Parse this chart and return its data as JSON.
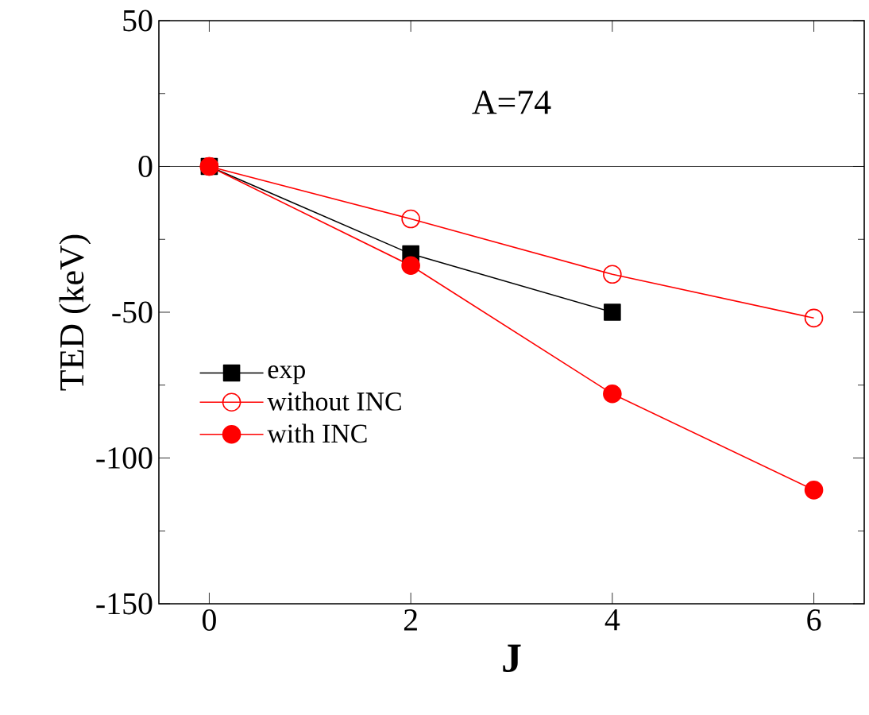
{
  "chart_data": {
    "type": "line",
    "xlabel": "J",
    "ylabel": "TED (keV)",
    "x": [
      0,
      2,
      4,
      6
    ],
    "series": [
      {
        "name": "exp",
        "color": "#000000",
        "marker": "square",
        "values": [
          0,
          -30,
          -50,
          null
        ]
      },
      {
        "name": "without INC",
        "color": "#ff0000",
        "marker": "open circle",
        "values": [
          0,
          -18,
          -37,
          -52
        ]
      },
      {
        "name": "with INC",
        "color": "#ff0000",
        "marker": "circle",
        "values": [
          0,
          -34,
          -78,
          -111
        ]
      }
    ],
    "xlim": [
      -0.5,
      6.5
    ],
    "ylim": [
      -150,
      50
    ],
    "xticks": [
      0,
      2,
      4,
      6
    ],
    "yticks": [
      -150,
      -100,
      -50,
      0,
      50
    ],
    "ref_lines": [
      {
        "axis": "y",
        "value": 0,
        "color": "#000000"
      }
    ],
    "annotations": [
      "A=74"
    ],
    "legend": "left",
    "grid": false,
    "line_style": "solid"
  }
}
